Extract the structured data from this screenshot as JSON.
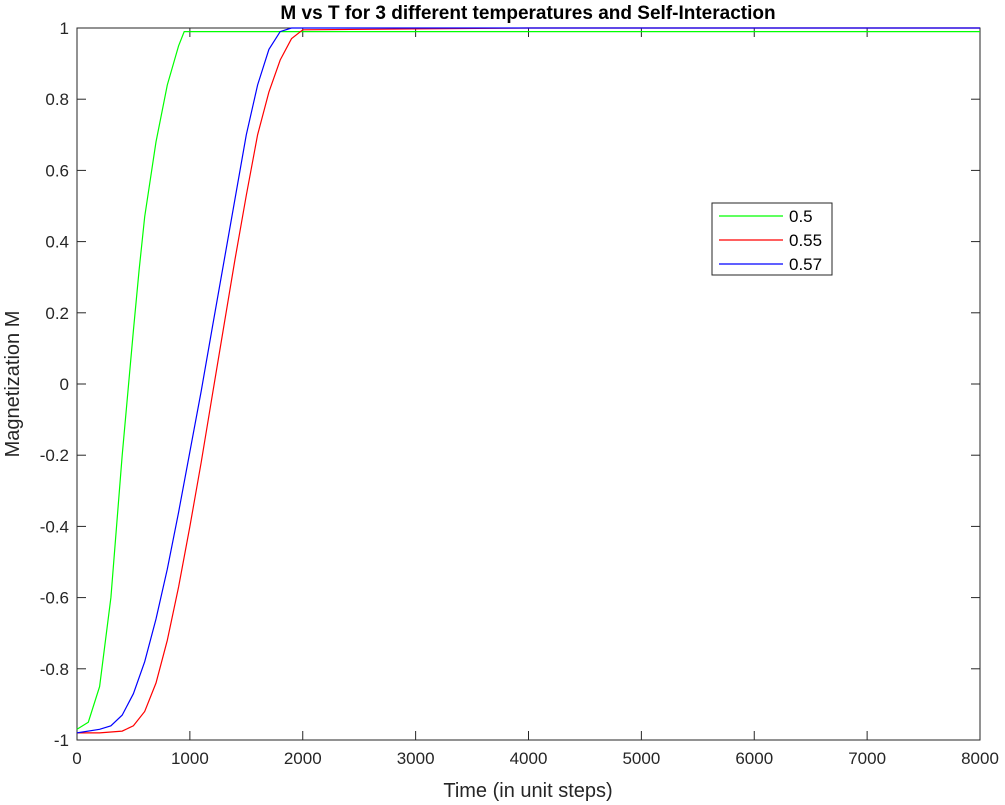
{
  "chart_data": {
    "type": "line",
    "title": "M vs T for 3 different temperatures and Self-Interaction",
    "xlabel": "Time (in unit steps)",
    "ylabel": "Magnetization M",
    "xlim": [
      0,
      8000
    ],
    "ylim": [
      -1,
      1
    ],
    "xticks": [
      0,
      1000,
      2000,
      3000,
      4000,
      5000,
      6000,
      7000,
      8000
    ],
    "yticks": [
      -1,
      -0.8,
      -0.6,
      -0.4,
      -0.2,
      0,
      0.2,
      0.4,
      0.6,
      0.8,
      1
    ],
    "xtick_labels": [
      "0",
      "1000",
      "2000",
      "3000",
      "4000",
      "5000",
      "6000",
      "7000",
      "8000"
    ],
    "ytick_labels": [
      "-1",
      "-0.8",
      "-0.6",
      "-0.4",
      "-0.2",
      "0",
      "0.2",
      "0.4",
      "0.6",
      "0.8",
      "1"
    ],
    "grid": false,
    "legend_position": "right, upper-middle",
    "series": [
      {
        "name": "0.5",
        "color": "#00ff00",
        "x": [
          0,
          100,
          200,
          300,
          400,
          500,
          550,
          600,
          700,
          800,
          900,
          950,
          1000,
          2000,
          4000,
          6000,
          8000
        ],
        "y": [
          -0.97,
          -0.95,
          -0.85,
          -0.6,
          -0.2,
          0.15,
          0.32,
          0.47,
          0.68,
          0.84,
          0.95,
          0.99,
          0.99,
          0.99,
          0.99,
          0.99,
          0.99
        ]
      },
      {
        "name": "0.55",
        "color": "#ff0000",
        "x": [
          0,
          200,
          400,
          500,
          600,
          700,
          800,
          900,
          1000,
          1100,
          1200,
          1300,
          1400,
          1500,
          1600,
          1700,
          1800,
          1900,
          2000,
          4000,
          6000,
          8000
        ],
        "y": [
          -0.98,
          -0.98,
          -0.975,
          -0.96,
          -0.92,
          -0.84,
          -0.72,
          -0.57,
          -0.4,
          -0.22,
          -0.03,
          0.16,
          0.35,
          0.53,
          0.7,
          0.82,
          0.91,
          0.97,
          0.995,
          1.0,
          1.0,
          1.0
        ]
      },
      {
        "name": "0.57",
        "color": "#0000ff",
        "x": [
          0,
          200,
          300,
          400,
          500,
          600,
          700,
          800,
          900,
          1000,
          1100,
          1200,
          1300,
          1400,
          1500,
          1600,
          1700,
          1800,
          1900,
          2000,
          4000,
          6000,
          8000
        ],
        "y": [
          -0.98,
          -0.97,
          -0.96,
          -0.93,
          -0.87,
          -0.78,
          -0.66,
          -0.52,
          -0.36,
          -0.19,
          -0.02,
          0.16,
          0.34,
          0.52,
          0.7,
          0.84,
          0.94,
          0.99,
          1.0,
          1.0,
          1.0,
          1.0,
          1.0
        ]
      }
    ]
  }
}
